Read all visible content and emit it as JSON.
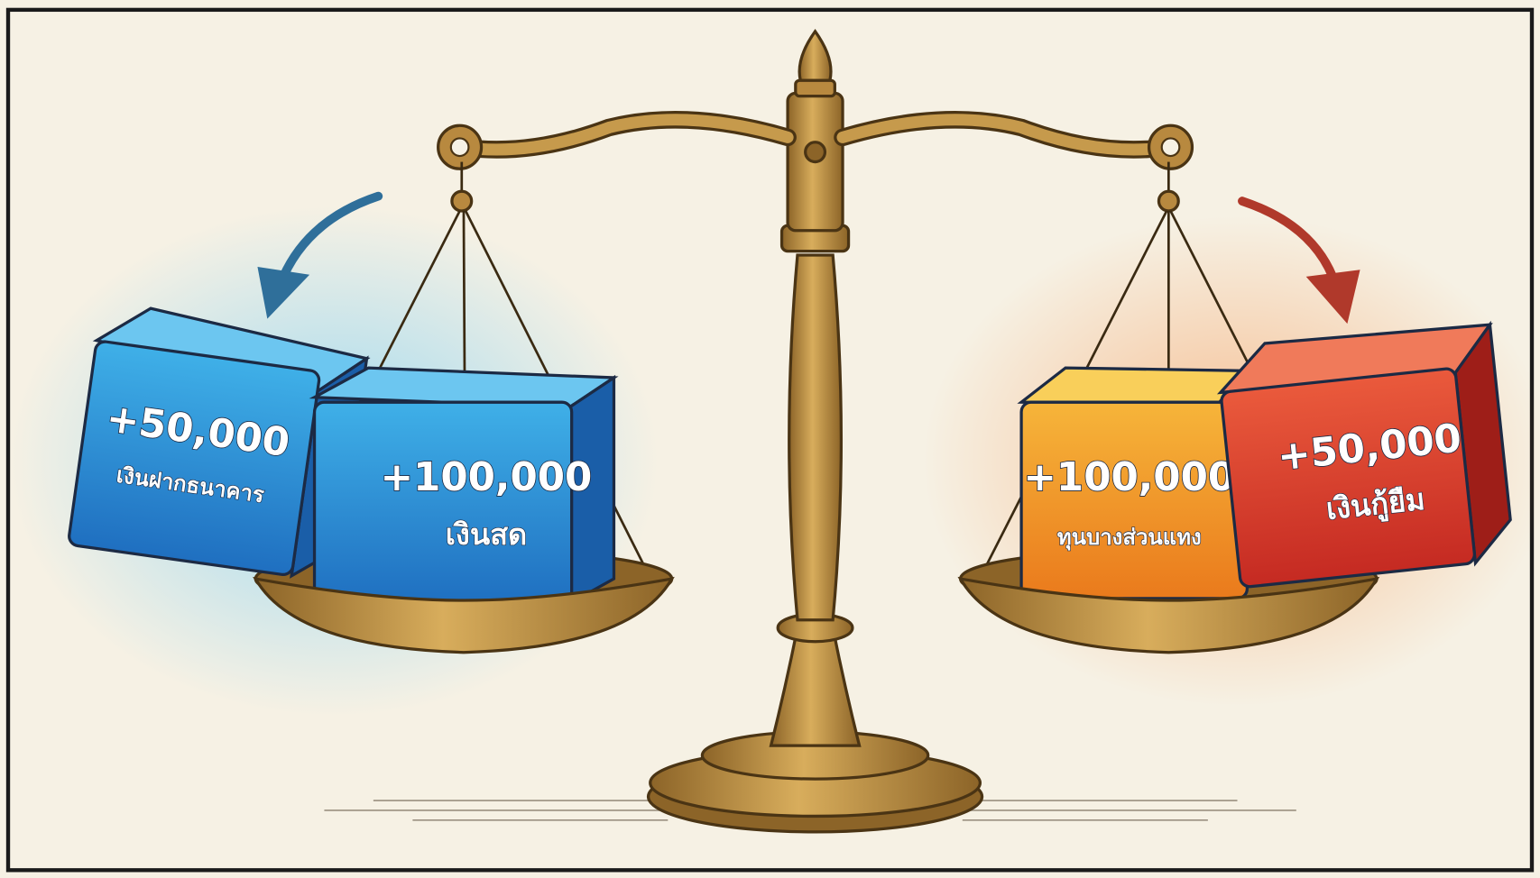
{
  "blocks": [
    {
      "amount": "+50,000",
      "label": "เงินฝากธนาคาร"
    },
    {
      "amount": "+100,000",
      "label": "เงินสด"
    },
    {
      "amount": "+100,000",
      "label": "ทุนบางส่วนแทง"
    },
    {
      "amount": "+50,000",
      "label": "เงินกู้ยืม"
    }
  ]
}
